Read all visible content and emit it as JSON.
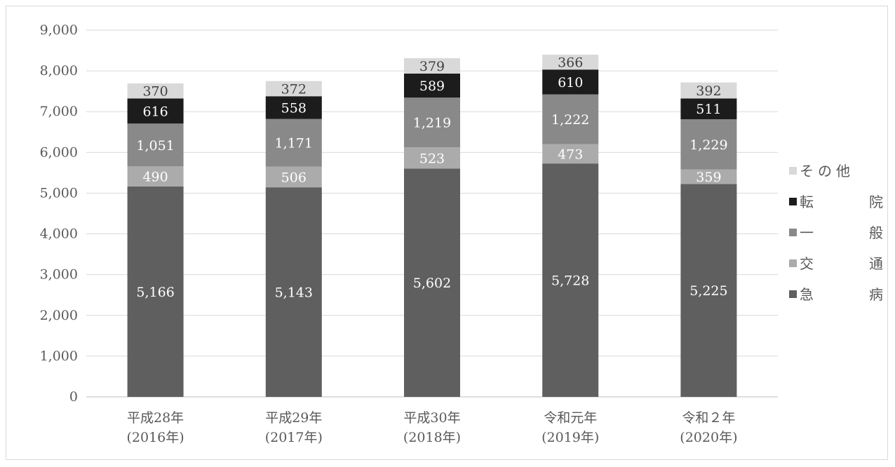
{
  "chart_data": {
    "type": "bar",
    "stacked": true,
    "categories": [
      [
        "平成28年",
        "(2016年)"
      ],
      [
        "平成29年",
        "(2017年)"
      ],
      [
        "平成30年",
        "(2018年)"
      ],
      [
        "令和元年",
        "(2019年)"
      ],
      [
        "令和２年",
        "(2020年)"
      ]
    ],
    "series": [
      {
        "name": "急　病",
        "color": "#5f5f5f",
        "label_color": "#ffffff",
        "values": [
          5166,
          5143,
          5602,
          5728,
          5225
        ]
      },
      {
        "name": "交　通",
        "color": "#ababab",
        "label_color": "#ffffff",
        "values": [
          490,
          506,
          523,
          473,
          359
        ]
      },
      {
        "name": "一　般",
        "color": "#898989",
        "label_color": "#ffffff",
        "values": [
          1051,
          1171,
          1219,
          1222,
          1229
        ]
      },
      {
        "name": "転　院",
        "color": "#1c1c1c",
        "label_color": "#ffffff",
        "values": [
          616,
          558,
          589,
          610,
          511
        ]
      },
      {
        "name": "その他",
        "color": "#d9d9d9",
        "label_color": "#404040",
        "values": [
          370,
          372,
          379,
          366,
          392
        ]
      }
    ],
    "y_ticks": [
      "0",
      "1,000",
      "2,000",
      "3,000",
      "4,000",
      "5,000",
      "6,000",
      "7,000",
      "8,000",
      "9,000"
    ],
    "ylim": [
      0,
      9000
    ],
    "grid": true,
    "legend_position": "right",
    "legend_order": [
      "その他",
      "転　院",
      "一　般",
      "交　通",
      "急　病"
    ]
  }
}
